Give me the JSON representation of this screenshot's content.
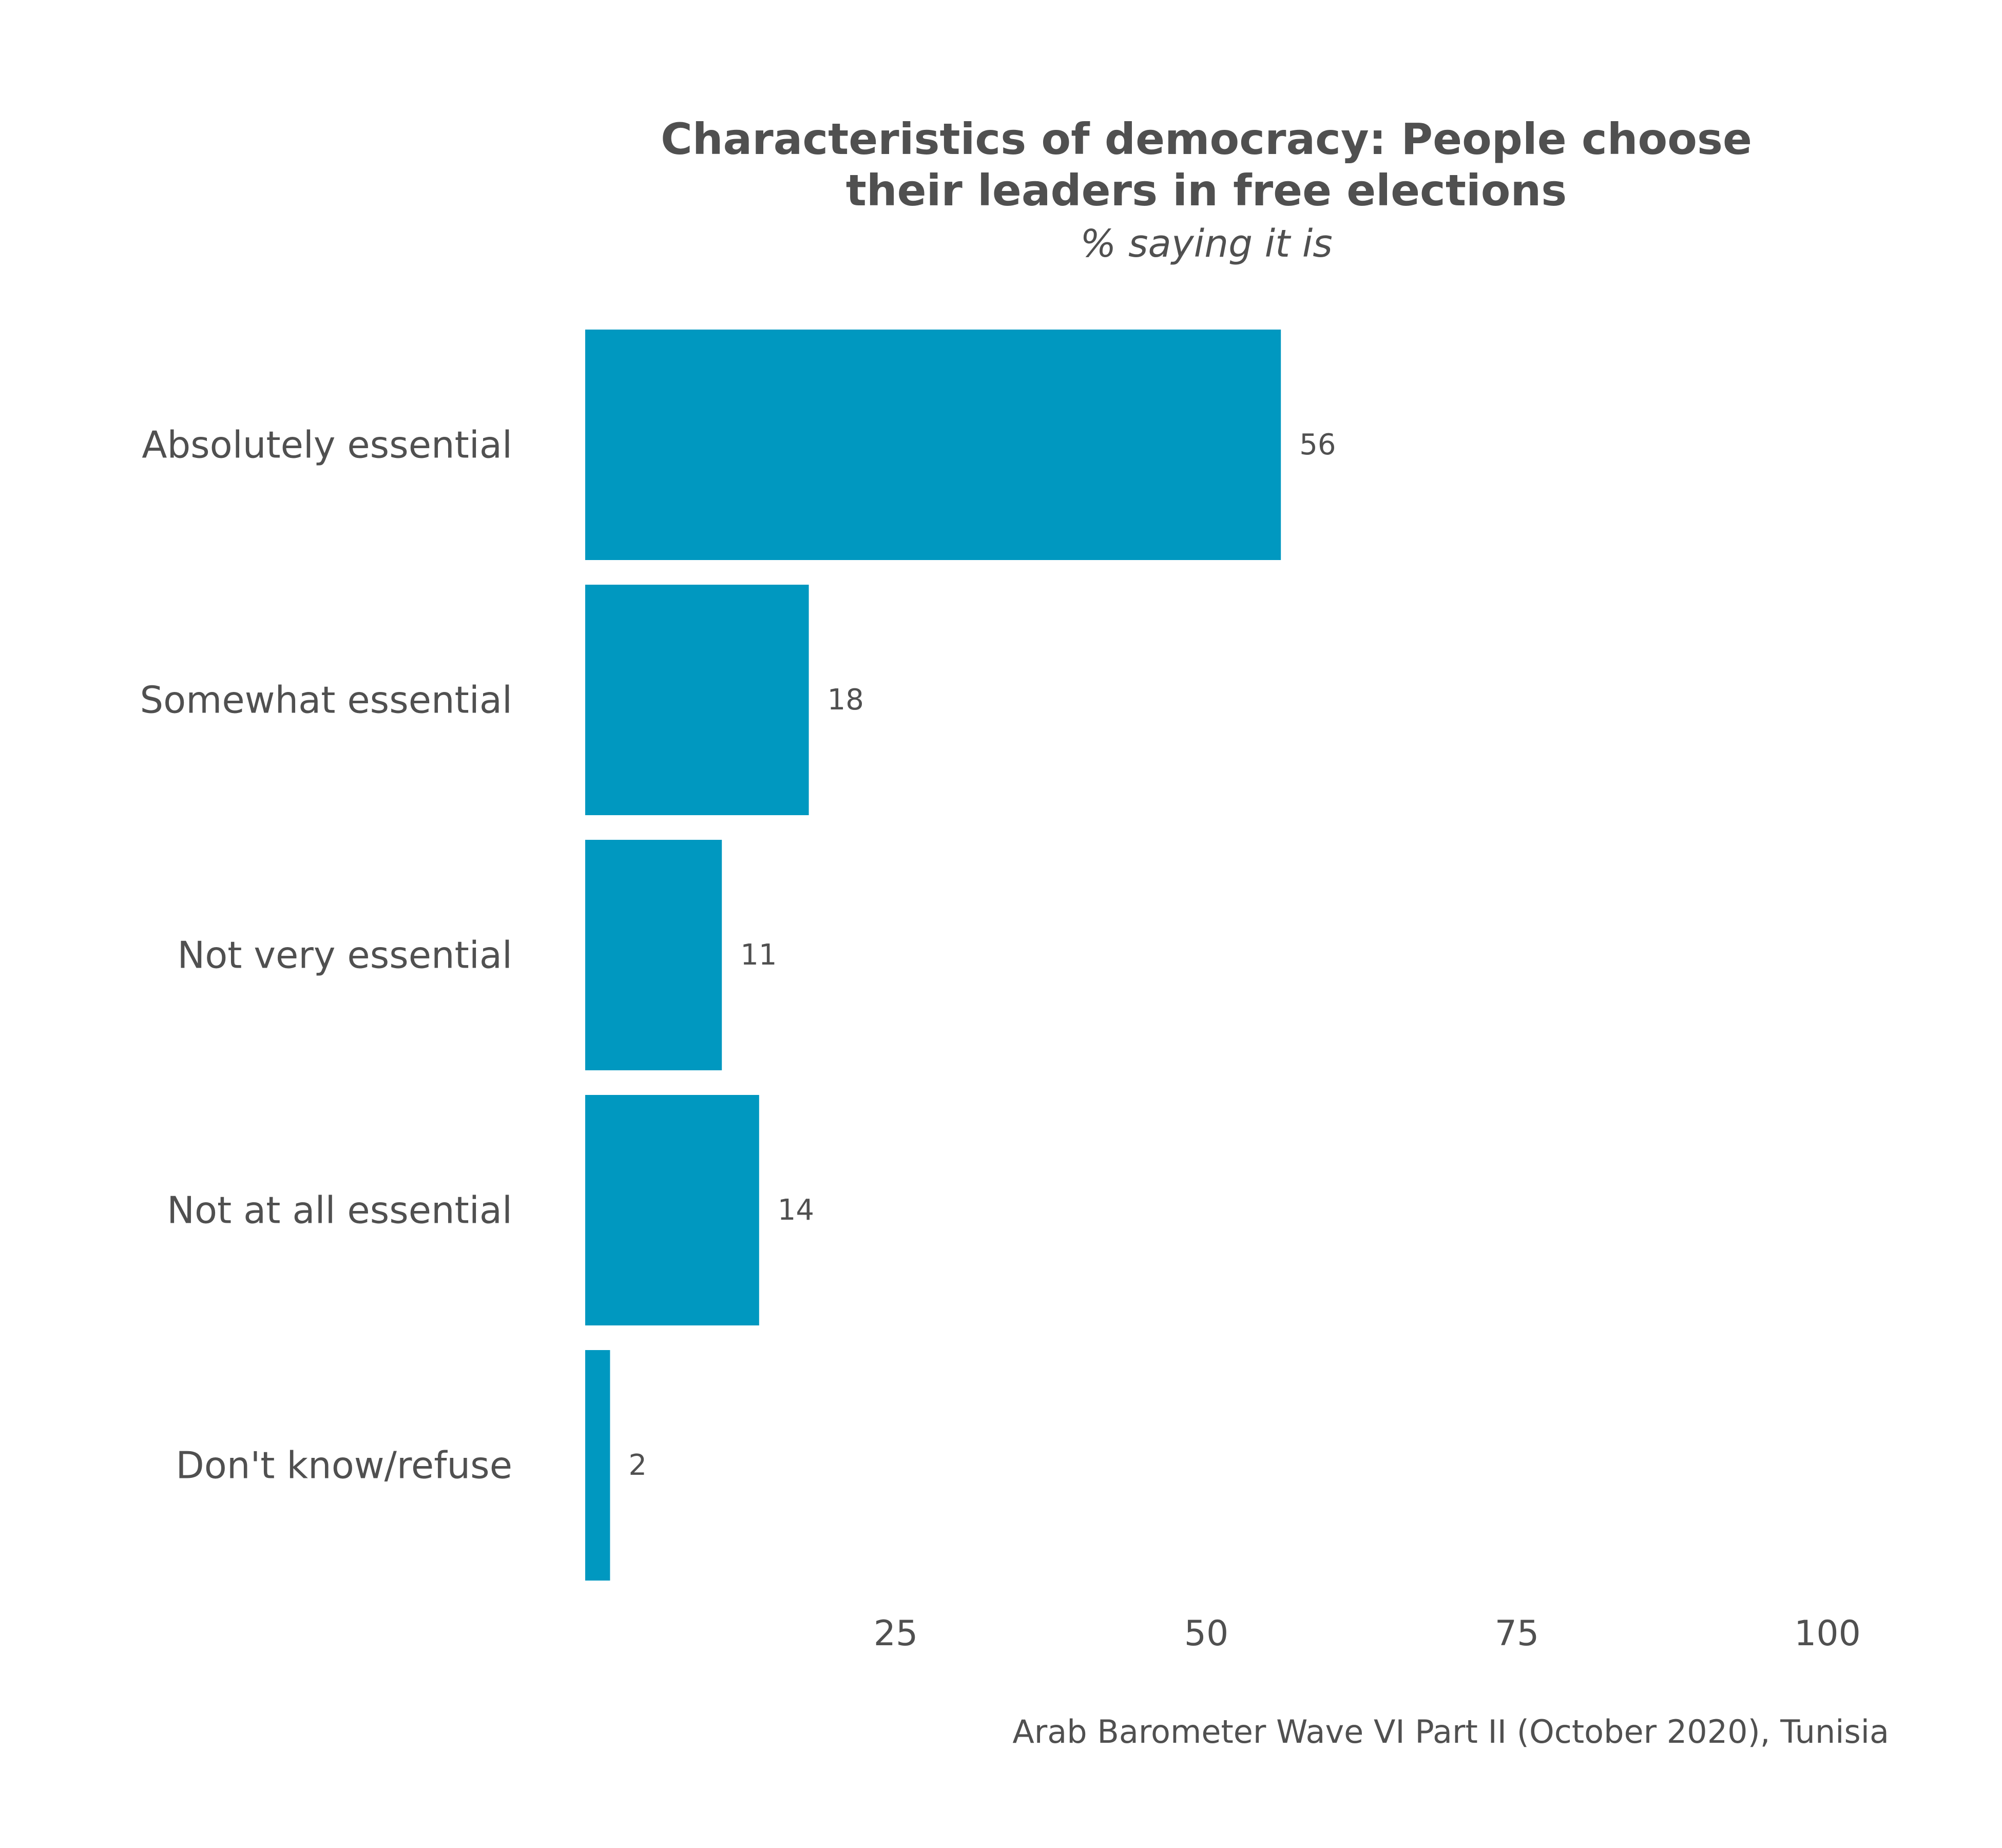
{
  "chart_data": {
    "type": "bar",
    "orientation": "horizontal",
    "title_lines": [
      "Characteristics of democracy: People choose",
      "their leaders in free elections"
    ],
    "subtitle": "% saying it is",
    "categories": [
      "Absolutely essential",
      "Somewhat essential",
      "Not very essential",
      "Not at all essential",
      "Don't know/refuse"
    ],
    "values": [
      56,
      18,
      11,
      14,
      2
    ],
    "xlim": [
      0,
      100
    ],
    "xticks": [
      25,
      50,
      75,
      100
    ],
    "grid": false,
    "bar_color": "#0098c0",
    "caption": "Arab Barometer Wave VI Part II (October 2020), Tunisia"
  }
}
